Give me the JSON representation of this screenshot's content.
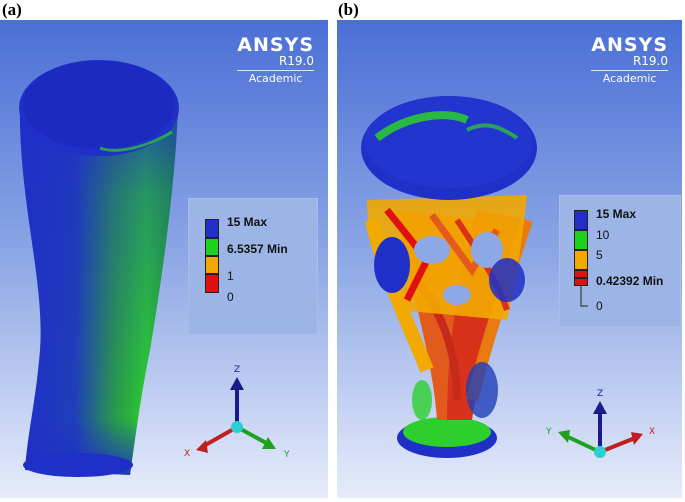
{
  "panels": [
    {
      "label": "(a)",
      "logo": {
        "title": "ANSYS",
        "version": "R19.0",
        "edition": "Academic"
      },
      "legend": {
        "entries": [
          {
            "text": "15 Max",
            "color": "#1f2fc7"
          },
          {
            "text": "6.5357 Min",
            "color": "#1fd11f"
          },
          {
            "text": "1",
            "color": "#f2a900"
          },
          {
            "text": "0",
            "color": "#e01010"
          }
        ]
      },
      "triad": {
        "z": "Z",
        "x": "X",
        "y": "Y"
      }
    },
    {
      "label": "(b)",
      "logo": {
        "title": "ANSYS",
        "version": "R19.0",
        "edition": "Academic"
      },
      "legend": {
        "entries": [
          {
            "text": "15 Max",
            "color": "#1f2fc7"
          },
          {
            "text": "10",
            "color": "#1fd11f"
          },
          {
            "text": "5",
            "color": "#f2a900"
          },
          {
            "text": "0.42392 Min",
            "color": "#e01010"
          },
          {
            "text": "0",
            "color": "#e01010"
          }
        ]
      },
      "triad": {
        "z": "Z",
        "x": "X",
        "y": "Y"
      }
    }
  ],
  "colors": {
    "blue": "#1f2fc7",
    "green": "#2ccf2c",
    "orange": "#f2a900",
    "red": "#e01010"
  }
}
